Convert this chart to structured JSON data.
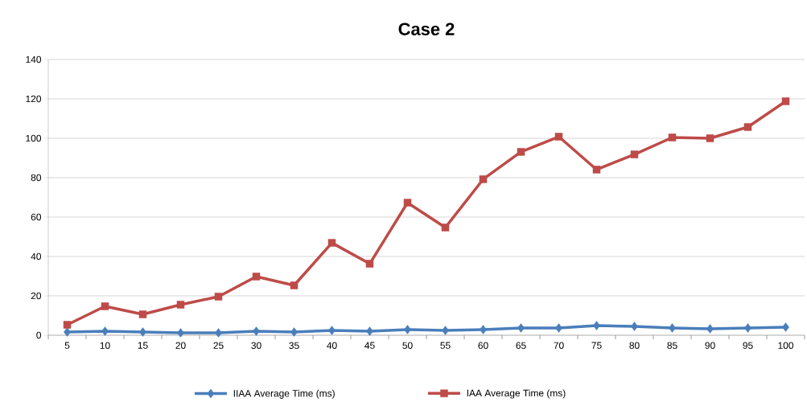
{
  "chart_data": {
    "type": "line",
    "title": "Case 2",
    "categories": [
      "5",
      "10",
      "15",
      "20",
      "25",
      "30",
      "35",
      "40",
      "45",
      "50",
      "55",
      "60",
      "65",
      "70",
      "75",
      "80",
      "85",
      "90",
      "95",
      "100"
    ],
    "series": [
      {
        "name": "IIAA Average Time (ms)",
        "color": "#4a7ebb",
        "marker": "diamond",
        "values": [
          1.6,
          2,
          1.6,
          1.2,
          1.2,
          2,
          1.6,
          2.4,
          2,
          2.9,
          2.4,
          2.9,
          3.7,
          3.7,
          4.9,
          4.5,
          3.7,
          3.3,
          3.7,
          4.1
        ]
      },
      {
        "name": "IAA Average Time (ms)",
        "color": "#be4b48",
        "marker": "square",
        "values": [
          5.3,
          14.7,
          10.6,
          15.5,
          19.6,
          29.8,
          25.3,
          46.9,
          36.3,
          67.3,
          54.7,
          79.2,
          93.1,
          100.8,
          84.1,
          91.8,
          100.4,
          100,
          105.7,
          118.8
        ]
      }
    ],
    "ylim": [
      0,
      140
    ],
    "yticks": [
      0,
      20,
      40,
      60,
      80,
      100,
      120,
      140
    ],
    "grid": "y",
    "legend": "bottom",
    "line_style": "solid"
  }
}
